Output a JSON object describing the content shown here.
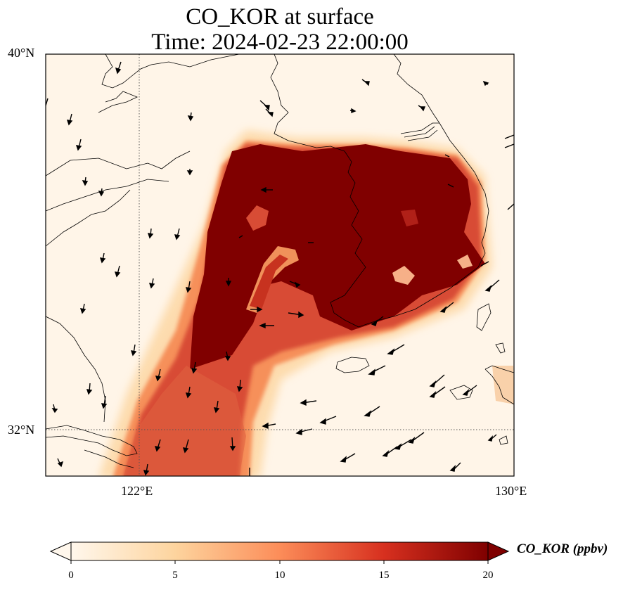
{
  "map": {
    "title_line1": "CO_KOR at surface",
    "title_line2": "Time: 2024-02-23 22:00:00",
    "lat_labels": [
      "40°N",
      "32°N"
    ],
    "lon_labels": [
      "122°E",
      "130°E"
    ],
    "colorbar": {
      "label": "CO_KOR (ppbv)",
      "ticks": [
        "0",
        "5",
        "10",
        "15",
        "20"
      ],
      "range": [
        0,
        20
      ],
      "extend": "both",
      "colormap": "OrRd",
      "colors": [
        "#fff7ec",
        "#fdd49e",
        "#fc8d59",
        "#d7301f",
        "#7f0000"
      ]
    },
    "frame_color": "#000000",
    "coastline_color": "#000000",
    "gridline_style": "dotted"
  }
}
